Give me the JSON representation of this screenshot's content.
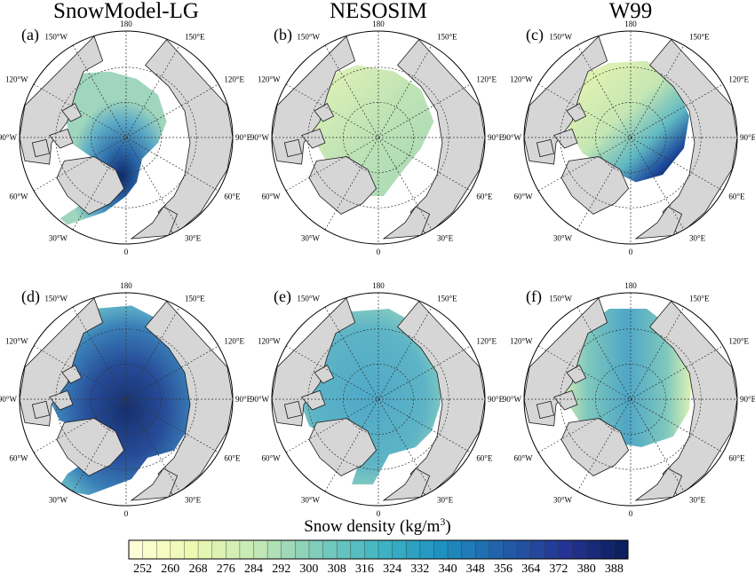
{
  "chart_data": {
    "type": "heatmap",
    "projection": "north-polar-stereographic",
    "column_titles": [
      "SnowModel-LG",
      "NESOSIM",
      "W99"
    ],
    "panel_labels": [
      "(a)",
      "(b)",
      "(c)",
      "(d)",
      "(e)",
      "(f)"
    ],
    "longitude_labels": {
      "top": "180",
      "upper_left": "150°W",
      "upper_right": "150°E",
      "mid_upper_left": "120°W",
      "mid_upper_right": "120°E",
      "left": "90°W",
      "right": "90°E",
      "mid_lower_left": "60°W",
      "mid_lower_right": "60°E",
      "lower_left": "30°W",
      "lower_right": "30°E",
      "bottom": "0"
    },
    "colorbar": {
      "title_main": "Snow density (kg/m",
      "title_sup": "3",
      "title_close": ")",
      "min": 248,
      "max": 392,
      "ticks": [
        252,
        260,
        268,
        276,
        284,
        292,
        300,
        308,
        316,
        324,
        332,
        340,
        348,
        356,
        364,
        372,
        380,
        388
      ],
      "tick_labels": [
        "252",
        "260",
        "268",
        "276",
        "284",
        "292",
        "300",
        "308",
        "316",
        "324",
        "332",
        "340",
        "348",
        "356",
        "364",
        "372",
        "380",
        "388"
      ],
      "bins": 36,
      "colors": [
        "#ffffd9",
        "#edf8b1",
        "#c7e9b4",
        "#7fcdbb",
        "#41b6c4",
        "#1d91c0",
        "#225ea8",
        "#253494",
        "#081d58"
      ]
    },
    "panels": [
      {
        "model": "SnowModel-LG",
        "row": 1,
        "typical_density": 318,
        "max_density": 384
      },
      {
        "model": "NESOSIM",
        "row": 1,
        "typical_density": 290,
        "max_density": 304
      },
      {
        "model": "W99",
        "row": 1,
        "typical_density": 286,
        "max_density": 376
      },
      {
        "model": "SnowModel-LG",
        "row": 2,
        "typical_density": 348,
        "max_density": 390
      },
      {
        "model": "NESOSIM",
        "row": 2,
        "typical_density": 316,
        "max_density": 328
      },
      {
        "model": "W99",
        "row": 2,
        "typical_density": 312,
        "max_density": 326
      }
    ]
  }
}
